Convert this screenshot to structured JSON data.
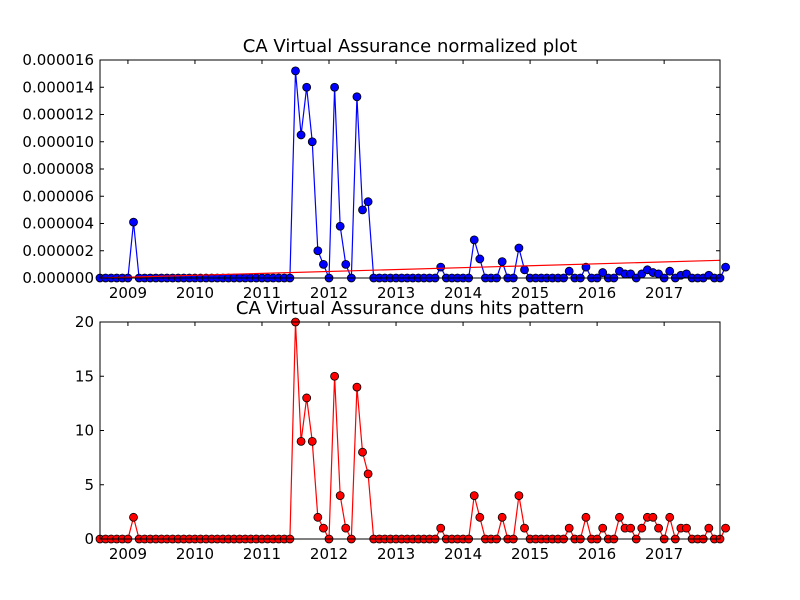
{
  "chart_data": [
    {
      "type": "line",
      "title": "CA Virtual Assurance normalized plot",
      "xlabel": "",
      "ylabel": "",
      "x_tick_labels": [
        "2009",
        "2010",
        "2011",
        "2012",
        "2013",
        "2014",
        "2015",
        "2016",
        "2017"
      ],
      "y_tick_labels": [
        "0.000000",
        "0.000002",
        "0.000004",
        "0.000006",
        "0.000008",
        "0.000010",
        "0.000012",
        "0.000014",
        "0.000016"
      ],
      "y_ticks": [
        0,
        2e-06,
        4e-06,
        6e-06,
        8e-06,
        1e-05,
        1.2e-05,
        1.4e-05,
        1.6e-05
      ],
      "ylim": [
        0,
        1.6e-05
      ],
      "xlim": [
        "2008-08",
        "2017-11"
      ],
      "grid": false,
      "colors": {
        "series": "#0000ff",
        "trend": "#ff0000"
      },
      "series": [
        {
          "style": "line-with-markers",
          "x_start": "2008-08",
          "x_step_months": 1,
          "values": [
            0,
            0,
            0,
            0,
            0,
            0,
            4.1e-06,
            0,
            0,
            0,
            0,
            0,
            0,
            0,
            0,
            0,
            0,
            0,
            0,
            0,
            0,
            0,
            0,
            0,
            0,
            0,
            0,
            0,
            0,
            0,
            0,
            0,
            0,
            0,
            0,
            1.52e-05,
            1.05e-05,
            1.4e-05,
            1e-05,
            2e-06,
            1e-06,
            0,
            1.4e-05,
            3.8e-06,
            1e-06,
            0,
            1.33e-05,
            5e-06,
            5.6e-06,
            0,
            0,
            0,
            0,
            0,
            0,
            0,
            0,
            0,
            0,
            0,
            0,
            8e-07,
            0,
            0,
            0,
            0,
            0,
            2.8e-06,
            1.4e-06,
            0,
            0,
            0,
            1.2e-06,
            0,
            0,
            2.2e-06,
            6e-07,
            0,
            0,
            0,
            0,
            0,
            0,
            0,
            5e-07,
            0,
            0,
            8e-07,
            0,
            0,
            4e-07,
            0,
            0,
            5e-07,
            3e-07,
            3e-07,
            0,
            3e-07,
            6e-07,
            4e-07,
            3e-07,
            0,
            5e-07,
            0,
            2e-07,
            3e-07,
            0,
            0,
            0,
            2e-07,
            0,
            0,
            8e-07
          ]
        },
        {
          "style": "line",
          "x": [
            "2008-08",
            "2017-11"
          ],
          "values": [
            0,
            1.3e-06
          ]
        }
      ]
    },
    {
      "type": "line",
      "title": "CA Virtual Assurance duns hits pattern",
      "xlabel": "",
      "ylabel": "",
      "x_tick_labels": [
        "2009",
        "2010",
        "2011",
        "2012",
        "2013",
        "2014",
        "2015",
        "2016",
        "2017"
      ],
      "y_tick_labels": [
        "0",
        "5",
        "10",
        "15",
        "20"
      ],
      "y_ticks": [
        0,
        5,
        10,
        15,
        20
      ],
      "ylim": [
        0,
        20
      ],
      "xlim": [
        "2008-08",
        "2017-11"
      ],
      "grid": false,
      "colors": {
        "series": "#ff0000"
      },
      "series": [
        {
          "style": "line-with-markers",
          "x_start": "2008-08",
          "x_step_months": 1,
          "values": [
            0,
            0,
            0,
            0,
            0,
            0,
            2,
            0,
            0,
            0,
            0,
            0,
            0,
            0,
            0,
            0,
            0,
            0,
            0,
            0,
            0,
            0,
            0,
            0,
            0,
            0,
            0,
            0,
            0,
            0,
            0,
            0,
            0,
            0,
            0,
            20,
            9,
            13,
            9,
            2,
            1,
            0,
            15,
            4,
            1,
            0,
            14,
            8,
            6,
            0,
            0,
            0,
            0,
            0,
            0,
            0,
            0,
            0,
            0,
            0,
            0,
            1,
            0,
            0,
            0,
            0,
            0,
            4,
            2,
            0,
            0,
            0,
            2,
            0,
            0,
            4,
            1,
            0,
            0,
            0,
            0,
            0,
            0,
            0,
            1,
            0,
            0,
            2,
            0,
            0,
            1,
            0,
            0,
            2,
            1,
            1,
            0,
            1,
            2,
            2,
            1,
            0,
            2,
            0,
            1,
            1,
            0,
            0,
            0,
            1,
            0,
            0,
            1
          ]
        }
      ]
    }
  ]
}
